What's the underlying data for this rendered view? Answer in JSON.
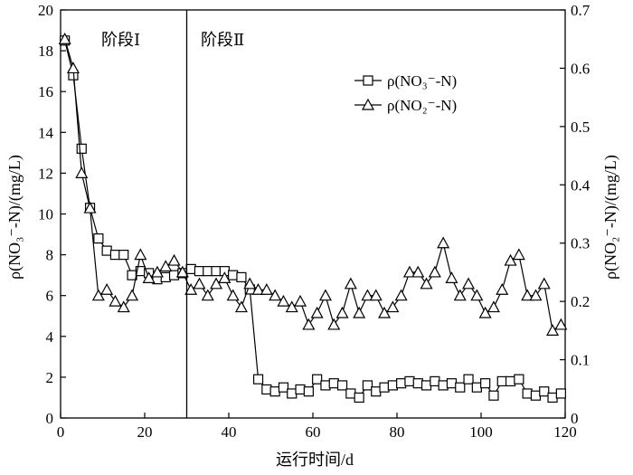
{
  "chart_data": {
    "type": "line",
    "xlabel": "运行时间/d",
    "ylabel_left": "ρ(NO₃⁻-N)/(mg/L)",
    "ylabel_right": "ρ(NO₂⁻-N)/(mg/L)",
    "xlim": [
      0,
      120
    ],
    "ylim_left": [
      0,
      20
    ],
    "ylim_right": [
      0,
      0.7
    ],
    "xticks": [
      "0",
      "20",
      "40",
      "60",
      "80",
      "100",
      "120"
    ],
    "yticks_left": [
      "0",
      "2",
      "4",
      "6",
      "8",
      "10",
      "12",
      "14",
      "16",
      "18",
      "20"
    ],
    "yticks_right": [
      "0",
      "0.1",
      "0.2",
      "0.3",
      "0.4",
      "0.5",
      "0.6",
      "0.7"
    ],
    "phase_divider_x": 30,
    "phase_labels": [
      "阶段Ⅰ",
      "阶段Ⅱ"
    ],
    "legend_position": "top-right",
    "grid": false,
    "series": [
      {
        "name": "ρ(NO₃⁻-N)",
        "marker": "square",
        "axis": "left",
        "x": [
          1,
          3,
          5,
          7,
          9,
          11,
          13,
          15,
          17,
          19,
          21,
          23,
          25,
          27,
          29,
          31,
          33,
          35,
          37,
          39,
          41,
          43,
          45,
          47,
          49,
          51,
          53,
          55,
          57,
          59,
          61,
          63,
          65,
          67,
          69,
          71,
          73,
          75,
          77,
          79,
          81,
          83,
          85,
          87,
          89,
          91,
          93,
          95,
          97,
          99,
          101,
          103,
          105,
          107,
          109,
          111,
          113,
          115,
          117,
          119
        ],
        "values": [
          18.5,
          16.8,
          13.2,
          10.3,
          8.8,
          8.2,
          8.0,
          8.0,
          7.0,
          7.2,
          7.1,
          6.8,
          6.9,
          7.0,
          7.1,
          7.3,
          7.2,
          7.2,
          7.2,
          7.2,
          7.0,
          6.9,
          6.3,
          1.9,
          1.4,
          1.3,
          1.5,
          1.2,
          1.4,
          1.3,
          1.9,
          1.6,
          1.7,
          1.6,
          1.2,
          1.0,
          1.6,
          1.3,
          1.5,
          1.6,
          1.7,
          1.8,
          1.7,
          1.6,
          1.8,
          1.6,
          1.7,
          1.5,
          1.9,
          1.5,
          1.7,
          1.1,
          1.8,
          1.8,
          1.9,
          1.2,
          1.1,
          1.3,
          1.0,
          1.2
        ]
      },
      {
        "name": "ρ(NO₂⁻-N)",
        "marker": "triangle",
        "axis": "right",
        "x": [
          1,
          3,
          5,
          7,
          9,
          11,
          13,
          15,
          17,
          19,
          21,
          23,
          25,
          27,
          29,
          31,
          33,
          35,
          37,
          39,
          41,
          43,
          45,
          47,
          49,
          51,
          53,
          55,
          57,
          59,
          61,
          63,
          65,
          67,
          69,
          71,
          73,
          75,
          77,
          79,
          81,
          83,
          85,
          87,
          89,
          91,
          93,
          95,
          97,
          99,
          101,
          103,
          105,
          107,
          109,
          111,
          113,
          115,
          117,
          119
        ],
        "values": [
          0.65,
          0.6,
          0.42,
          0.36,
          0.21,
          0.22,
          0.2,
          0.19,
          0.21,
          0.28,
          0.24,
          0.25,
          0.26,
          0.27,
          0.25,
          0.22,
          0.23,
          0.21,
          0.23,
          0.24,
          0.21,
          0.19,
          0.23,
          0.22,
          0.22,
          0.21,
          0.2,
          0.19,
          0.2,
          0.16,
          0.18,
          0.21,
          0.16,
          0.18,
          0.23,
          0.18,
          0.21,
          0.21,
          0.18,
          0.19,
          0.21,
          0.25,
          0.25,
          0.23,
          0.25,
          0.3,
          0.24,
          0.21,
          0.23,
          0.21,
          0.18,
          0.19,
          0.22,
          0.27,
          0.28,
          0.21,
          0.21,
          0.23,
          0.15,
          0.16
        ]
      }
    ]
  }
}
